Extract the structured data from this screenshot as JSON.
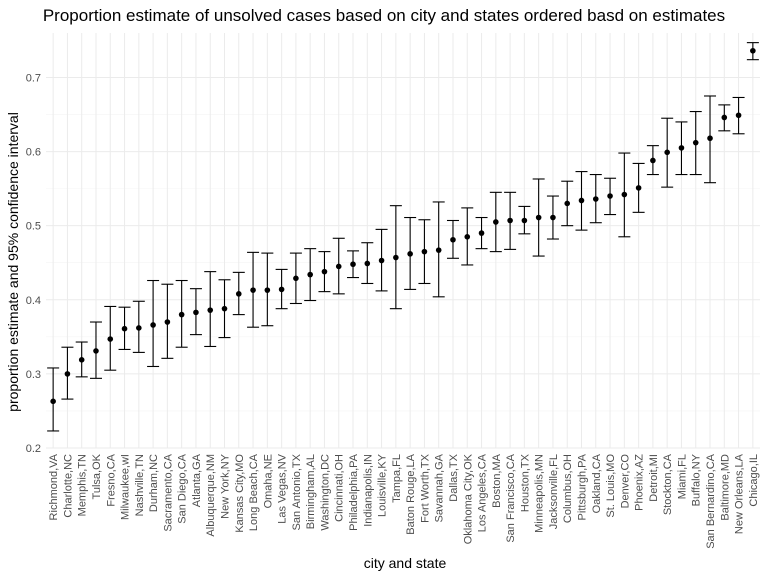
{
  "chart_data": {
    "type": "scatter",
    "title": "Proportion estimate of unsolved cases based on city and states ordered basd on estimates",
    "xlabel": "city and state",
    "ylabel": "proportion estimate and 95% confidence interval",
    "ylim": [
      0.2,
      0.76
    ],
    "yticks": [
      0.2,
      0.3,
      0.4,
      0.5,
      0.6,
      0.7
    ],
    "ytick_labels": [
      "0.2",
      "0.3",
      "0.4",
      "0.5",
      "0.6",
      "0.7"
    ],
    "grid": true,
    "points": [
      {
        "city": "Richmond,VA",
        "estimate": 0.263,
        "lower": 0.223,
        "upper": 0.308
      },
      {
        "city": "Charlotte,NC",
        "estimate": 0.3,
        "lower": 0.266,
        "upper": 0.336
      },
      {
        "city": "Memphis,TN",
        "estimate": 0.319,
        "lower": 0.296,
        "upper": 0.343
      },
      {
        "city": "Tulsa,OK",
        "estimate": 0.331,
        "lower": 0.294,
        "upper": 0.37
      },
      {
        "city": "Fresno,CA",
        "estimate": 0.347,
        "lower": 0.305,
        "upper": 0.391
      },
      {
        "city": "Milwaukee,wI",
        "estimate": 0.361,
        "lower": 0.333,
        "upper": 0.39
      },
      {
        "city": "Nashville,TN",
        "estimate": 0.362,
        "lower": 0.329,
        "upper": 0.398
      },
      {
        "city": "Durham,NC",
        "estimate": 0.366,
        "lower": 0.31,
        "upper": 0.426
      },
      {
        "city": "Sacramento,CA",
        "estimate": 0.37,
        "lower": 0.321,
        "upper": 0.421
      },
      {
        "city": "San Diego,CA",
        "estimate": 0.38,
        "lower": 0.336,
        "upper": 0.426
      },
      {
        "city": "Atlanta,GA",
        "estimate": 0.383,
        "lower": 0.353,
        "upper": 0.415
      },
      {
        "city": "Albuquerque,NM",
        "estimate": 0.386,
        "lower": 0.337,
        "upper": 0.438
      },
      {
        "city": "New York,NY",
        "estimate": 0.388,
        "lower": 0.349,
        "upper": 0.427
      },
      {
        "city": "Kansas City,MO",
        "estimate": 0.408,
        "lower": 0.38,
        "upper": 0.437
      },
      {
        "city": "Long Beach,CA",
        "estimate": 0.413,
        "lower": 0.363,
        "upper": 0.464
      },
      {
        "city": "Omaha,NE",
        "estimate": 0.413,
        "lower": 0.365,
        "upper": 0.463
      },
      {
        "city": "Las Vegas,NV",
        "estimate": 0.414,
        "lower": 0.388,
        "upper": 0.441
      },
      {
        "city": "San Antonio,TX",
        "estimate": 0.429,
        "lower": 0.395,
        "upper": 0.463
      },
      {
        "city": "Birmingham,AL",
        "estimate": 0.434,
        "lower": 0.399,
        "upper": 0.469
      },
      {
        "city": "Washington,DC",
        "estimate": 0.438,
        "lower": 0.411,
        "upper": 0.465
      },
      {
        "city": "Cincinnati,OH",
        "estimate": 0.445,
        "lower": 0.408,
        "upper": 0.483
      },
      {
        "city": "Philadelphia,PA",
        "estimate": 0.448,
        "lower": 0.43,
        "upper": 0.466
      },
      {
        "city": "Indianapolis,IN",
        "estimate": 0.449,
        "lower": 0.422,
        "upper": 0.477
      },
      {
        "city": "Louisville,KY",
        "estimate": 0.453,
        "lower": 0.412,
        "upper": 0.495
      },
      {
        "city": "Tampa,FL",
        "estimate": 0.457,
        "lower": 0.388,
        "upper": 0.527
      },
      {
        "city": "Baton Rouge,LA",
        "estimate": 0.462,
        "lower": 0.414,
        "upper": 0.511
      },
      {
        "city": "Fort Worth,TX",
        "estimate": 0.465,
        "lower": 0.422,
        "upper": 0.508
      },
      {
        "city": "Savannah,GA",
        "estimate": 0.467,
        "lower": 0.404,
        "upper": 0.532
      },
      {
        "city": "Dallas,TX",
        "estimate": 0.481,
        "lower": 0.456,
        "upper": 0.507
      },
      {
        "city": "Oklahoma City,OK",
        "estimate": 0.485,
        "lower": 0.447,
        "upper": 0.524
      },
      {
        "city": "Los Angeles,CA",
        "estimate": 0.49,
        "lower": 0.469,
        "upper": 0.511
      },
      {
        "city": "Boston,MA",
        "estimate": 0.505,
        "lower": 0.465,
        "upper": 0.545
      },
      {
        "city": "San Francisco,CA",
        "estimate": 0.507,
        "lower": 0.468,
        "upper": 0.545
      },
      {
        "city": "Houston,TX",
        "estimate": 0.507,
        "lower": 0.489,
        "upper": 0.526
      },
      {
        "city": "Minneapolis,MN",
        "estimate": 0.511,
        "lower": 0.459,
        "upper": 0.563
      },
      {
        "city": "Jacksonville,FL",
        "estimate": 0.511,
        "lower": 0.482,
        "upper": 0.54
      },
      {
        "city": "Columbus,OH",
        "estimate": 0.53,
        "lower": 0.5,
        "upper": 0.56
      },
      {
        "city": "Pittsburgh,PA",
        "estimate": 0.534,
        "lower": 0.494,
        "upper": 0.573
      },
      {
        "city": "Oakland,CA",
        "estimate": 0.536,
        "lower": 0.504,
        "upper": 0.569
      },
      {
        "city": "St. Louis,MO",
        "estimate": 0.54,
        "lower": 0.515,
        "upper": 0.564
      },
      {
        "city": "Denver,CO",
        "estimate": 0.542,
        "lower": 0.485,
        "upper": 0.598
      },
      {
        "city": "Phoenix,AZ",
        "estimate": 0.551,
        "lower": 0.518,
        "upper": 0.584
      },
      {
        "city": "Detroit,MI",
        "estimate": 0.588,
        "lower": 0.569,
        "upper": 0.608
      },
      {
        "city": "Stockton,CA",
        "estimate": 0.599,
        "lower": 0.552,
        "upper": 0.645
      },
      {
        "city": "Miami,FL",
        "estimate": 0.605,
        "lower": 0.569,
        "upper": 0.64
      },
      {
        "city": "Buffalo,NY",
        "estimate": 0.612,
        "lower": 0.569,
        "upper": 0.654
      },
      {
        "city": "San Bernardino,CA",
        "estimate": 0.618,
        "lower": 0.558,
        "upper": 0.675
      },
      {
        "city": "Baltimore,MD",
        "estimate": 0.646,
        "lower": 0.628,
        "upper": 0.663
      },
      {
        "city": "New Orleans,LA",
        "estimate": 0.649,
        "lower": 0.624,
        "upper": 0.673
      },
      {
        "city": "Chicago,IL",
        "estimate": 0.736,
        "lower": 0.724,
        "upper": 0.747
      }
    ],
    "colors": {
      "point": "#000000",
      "errorbar": "#000000",
      "grid": "#ebebeb",
      "background": "#ffffff"
    }
  }
}
